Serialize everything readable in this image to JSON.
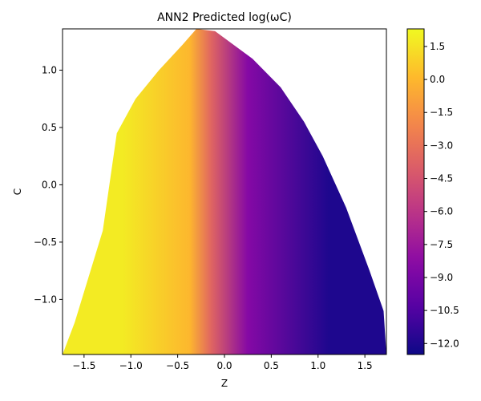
{
  "chart_data": {
    "type": "heatmap",
    "title": "ANN2 Predicted log(ωC)",
    "xlabel": "Z",
    "ylabel": "C",
    "xlim": [
      -1.73,
      1.73
    ],
    "ylim": [
      -1.48,
      1.36
    ],
    "x_ticks": [
      -1.5,
      -1.0,
      -0.5,
      0.0,
      0.5,
      1.0,
      1.5
    ],
    "x_tick_labels": [
      "−1.5",
      "−1.0",
      "−0.5",
      "0.0",
      "0.5",
      "1.0",
      "1.5"
    ],
    "y_ticks": [
      -1.0,
      -0.5,
      0.0,
      0.5,
      1.0
    ],
    "y_tick_labels": [
      "−1.0",
      "−0.5",
      "0.0",
      "0.5",
      "1.0"
    ],
    "colormap": "plasma",
    "colorbar": {
      "range": [
        -12.5,
        2.3
      ],
      "ticks": [
        1.5,
        0.0,
        -1.5,
        -3.0,
        -4.5,
        -6.0,
        -7.5,
        -9.0,
        -10.5,
        -12.0
      ],
      "tick_labels": [
        "1.5",
        "0.0",
        "−1.5",
        "−3.0",
        "−4.5",
        "−6.0",
        "−7.5",
        "−9.0",
        "−10.5",
        "−12.0"
      ]
    },
    "boundary": {
      "left": [
        [
          -1.73,
          -1.48
        ],
        [
          -1.6,
          -1.2
        ],
        [
          -1.45,
          -0.8
        ],
        [
          -1.3,
          -0.4
        ],
        [
          -1.15,
          0.45
        ],
        [
          -0.95,
          0.75
        ],
        [
          -0.7,
          1.0
        ],
        [
          -0.45,
          1.22
        ],
        [
          -0.3,
          1.36
        ]
      ],
      "right": [
        [
          -0.3,
          1.36
        ],
        [
          -0.1,
          1.34
        ],
        [
          0.3,
          1.1
        ],
        [
          0.6,
          0.85
        ],
        [
          0.85,
          0.55
        ],
        [
          1.05,
          0.25
        ],
        [
          1.3,
          -0.2
        ],
        [
          1.55,
          -0.75
        ],
        [
          1.7,
          -1.1
        ],
        [
          1.73,
          -1.48
        ]
      ]
    },
    "regions": [
      {
        "x_range": [
          -1.73,
          -0.45
        ],
        "value": 1.8
      },
      {
        "x_range": [
          -0.45,
          -0.3
        ],
        "value": 0.0
      },
      {
        "x_range": [
          -0.3,
          0.0
        ],
        "value": -3.5
      },
      {
        "x_range": [
          0.0,
          0.5
        ],
        "value": -8.5
      },
      {
        "x_range": [
          0.5,
          1.73
        ],
        "value": -12.0
      }
    ]
  }
}
